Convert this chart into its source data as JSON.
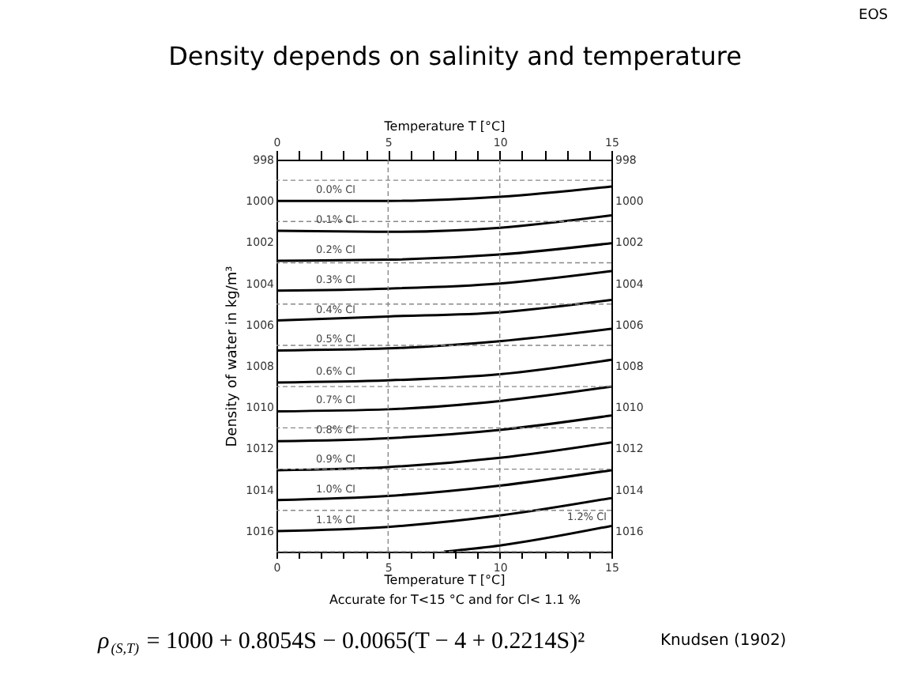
{
  "chart_data": {
    "type": "line",
    "title": "Density depends on salinity and temperature",
    "xlabel": "Temperature T [°C]",
    "x2label": "Temperature T [°C]",
    "ylabel": "Density of water in kg/m³",
    "x": [
      0,
      5,
      10,
      15
    ],
    "series": [
      {
        "name": "0.0% Cl",
        "color": "#000000",
        "values": [
          1000.0,
          1000.0,
          999.8,
          999.3
        ]
      },
      {
        "name": "0.1% Cl",
        "color": "#000000",
        "values": [
          1001.45,
          1001.5,
          1001.3,
          1000.7
        ]
      },
      {
        "name": "0.2% Cl",
        "color": "#000000",
        "values": [
          1002.9,
          1002.85,
          1002.6,
          1002.05
        ]
      },
      {
        "name": "0.3% Cl",
        "color": "#000000",
        "values": [
          1004.35,
          1004.25,
          1004.0,
          1003.4
        ]
      },
      {
        "name": "0.4% Cl",
        "color": "#000000",
        "values": [
          1005.8,
          1005.6,
          1005.4,
          1004.8
        ]
      },
      {
        "name": "0.5% Cl",
        "color": "#000000",
        "values": [
          1007.25,
          1007.15,
          1006.8,
          1006.2
        ]
      },
      {
        "name": "0.6% Cl",
        "color": "#000000",
        "values": [
          1008.8,
          1008.7,
          1008.4,
          1007.7
        ]
      },
      {
        "name": "0.7% Cl",
        "color": "#000000",
        "values": [
          1010.2,
          1010.1,
          1009.7,
          1009.0
        ]
      },
      {
        "name": "0.8% Cl",
        "color": "#000000",
        "values": [
          1011.65,
          1011.5,
          1011.1,
          1010.4
        ]
      },
      {
        "name": "0.9% Cl",
        "color": "#000000",
        "values": [
          1013.05,
          1012.9,
          1012.45,
          1011.7
        ]
      },
      {
        "name": "1.0% Cl",
        "color": "#000000",
        "values": [
          1014.5,
          1014.3,
          1013.8,
          1013.05
        ]
      },
      {
        "name": "1.1% Cl",
        "color": "#000000",
        "values": [
          1016.0,
          1015.8,
          1015.25,
          1014.4
        ]
      },
      {
        "name": "1.2% Cl",
        "color": "#000000",
        "x": [
          7.5,
          10,
          15
        ],
        "values": [
          1017.0,
          1016.7,
          1015.75
        ]
      }
    ],
    "xlim": [
      0,
      15
    ],
    "x2lim": [
      0,
      15
    ],
    "xticks": [
      0,
      {
        "value": 1,
        "label": null
      },
      {
        "value": 2,
        "label": null
      },
      {
        "value": 3,
        "label": null
      },
      {
        "value": 4,
        "label": null
      },
      5,
      {
        "value": 6,
        "label": null
      },
      {
        "value": 7,
        "label": null
      },
      {
        "value": 8,
        "label": null
      },
      {
        "value": 9,
        "label": null
      },
      10,
      {
        "value": 11,
        "label": null
      },
      {
        "value": 12,
        "label": null
      },
      {
        "value": 13,
        "label": null
      },
      {
        "value": 14,
        "label": null
      },
      15
    ],
    "x2ticks": [
      0,
      {
        "value": 1,
        "label": null
      },
      {
        "value": 2,
        "label": null
      },
      {
        "value": 3,
        "label": null
      },
      {
        "value": 4,
        "label": null
      },
      5,
      {
        "value": 6,
        "label": null
      },
      {
        "value": 7,
        "label": null
      },
      {
        "value": 8,
        "label": null
      },
      {
        "value": 9,
        "label": null
      },
      10,
      {
        "value": 11,
        "label": null
      },
      {
        "value": 12,
        "label": null
      },
      {
        "value": 13,
        "label": null
      },
      {
        "value": 14,
        "label": null
      },
      15
    ],
    "ylim": [
      1017,
      998
    ],
    "y2lim": [
      1017,
      998
    ],
    "yticks": [
      998,
      {
        "value": 999,
        "label": null
      },
      1000,
      {
        "value": 1001,
        "label": null
      },
      1002,
      {
        "value": 1003,
        "label": null
      },
      1004,
      {
        "value": 1005,
        "label": null
      },
      1006,
      {
        "value": 1007,
        "label": null
      },
      1008,
      {
        "value": 1009,
        "label": null
      },
      1010,
      {
        "value": 1011,
        "label": null
      },
      1012,
      {
        "value": 1013,
        "label": null
      },
      1014,
      {
        "value": 1015,
        "label": null
      },
      1016,
      {
        "value": 1017,
        "label": null
      }
    ],
    "y2ticks": [
      998,
      1000,
      1002,
      1004,
      1006,
      1008,
      1010,
      1012,
      1014,
      1016
    ],
    "grid": true,
    "legend": false,
    "marker": "none",
    "line_style": "solid",
    "annotations": [
      "Accurate for T<15 °C and for Cl< 1.1 %",
      "ρ$_{(S,T)}$ = 1000 + 0.8054S − 0.0065(T − 4 + 0.2214S)²",
      "Knudsen (1902)",
      "EOS"
    ]
  }
}
